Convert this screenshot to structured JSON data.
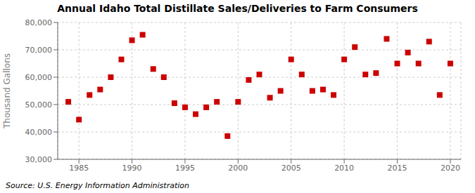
{
  "chart_data": {
    "type": "scatter",
    "title": "Annual Idaho Total Distillate Sales/Deliveries to Farm Consumers",
    "ylabel": "Thousand Gallons",
    "annotation": "Source: U.S. Energy Information Administration",
    "x": [
      1984,
      1985,
      1986,
      1987,
      1988,
      1989,
      1990,
      1991,
      1992,
      1993,
      1994,
      1995,
      1996,
      1997,
      1998,
      1999,
      2000,
      2001,
      2002,
      2003,
      2004,
      2005,
      2006,
      2007,
      2008,
      2009,
      2010,
      2011,
      2012,
      2013,
      2014,
      2015,
      2016,
      2017,
      2018,
      2019,
      2020
    ],
    "values": [
      51000,
      44500,
      53500,
      55500,
      60000,
      66500,
      73500,
      75500,
      63000,
      60000,
      50500,
      49000,
      46500,
      49000,
      51000,
      38500,
      51000,
      59000,
      61000,
      52500,
      55000,
      66500,
      61000,
      55000,
      55500,
      53500,
      66500,
      71000,
      61000,
      61500,
      74000,
      65000,
      69000,
      65000,
      73000,
      53500,
      65000
    ],
    "xlim": [
      1983,
      2021
    ],
    "xticks": [
      1985,
      1990,
      1995,
      2000,
      2005,
      2010,
      2015,
      2020
    ],
    "ylim": [
      30000,
      80000
    ],
    "yticks": [
      {
        "value": 30000,
        "label": "30,000"
      },
      {
        "value": 40000,
        "label": "40,000"
      },
      {
        "value": 50000,
        "label": "50,000"
      },
      {
        "value": 60000,
        "label": "60,000"
      },
      {
        "value": 70000,
        "label": "70,000"
      },
      {
        "value": 80000,
        "label": "80,000"
      }
    ],
    "color": "#cc0000",
    "marker": "square",
    "grid": true
  }
}
